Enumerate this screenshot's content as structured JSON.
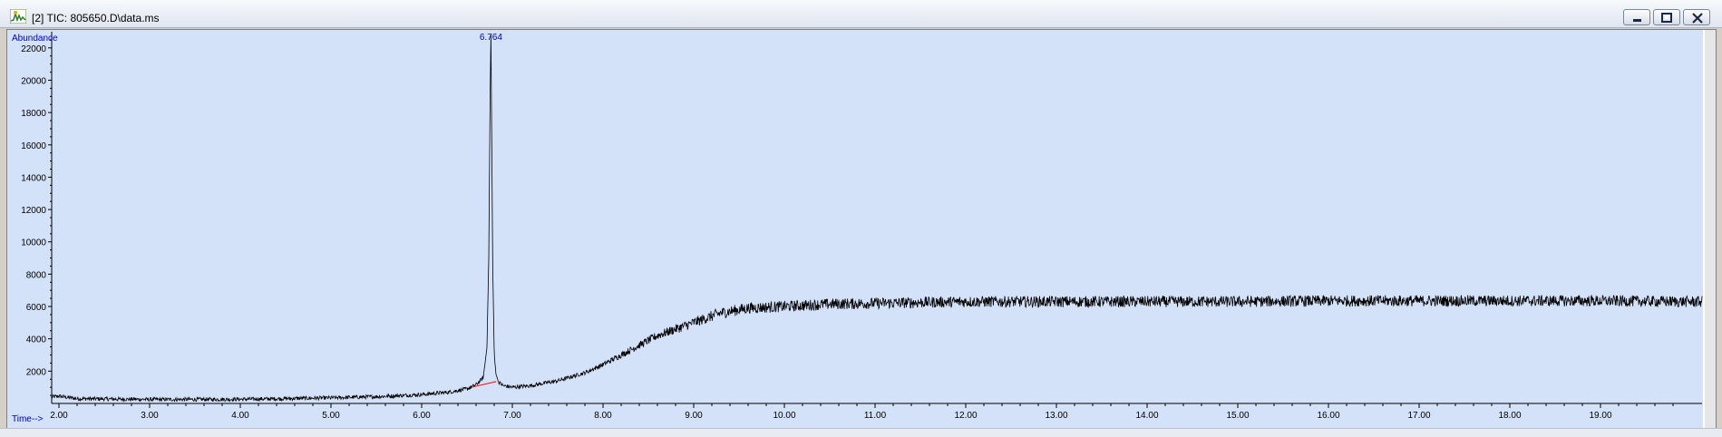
{
  "window": {
    "title": "[2] TIC: 805650.D\\data.ms",
    "icon": "chromatogram-icon",
    "buttons": [
      "minimize-icon",
      "restore-icon",
      "close-icon"
    ]
  },
  "chart_data": {
    "type": "line",
    "title": "",
    "ylabel": "Abundance",
    "xlabel": "Time-->",
    "xlim": [
      1.92,
      20.12
    ],
    "ylim": [
      0,
      23000
    ],
    "x_ticks": [
      "2.00",
      "3.00",
      "4.00",
      "5.00",
      "6.00",
      "7.00",
      "8.00",
      "9.00",
      "10.00",
      "11.00",
      "12.00",
      "13.00",
      "14.00",
      "15.00",
      "16.00",
      "17.00",
      "18.00",
      "19.00"
    ],
    "y_ticks": [
      "2000",
      "4000",
      "6000",
      "8000",
      "10000",
      "12000",
      "14000",
      "16000",
      "18000",
      "20000",
      "22000"
    ],
    "peak_label": "6.764",
    "series": [
      {
        "color": "#000000",
        "x": [
          1.92,
          2.0,
          2.2,
          2.5,
          3.0,
          3.5,
          4.0,
          4.5,
          5.0,
          5.5,
          6.0,
          6.3,
          6.5,
          6.6,
          6.68,
          6.72,
          6.74,
          6.755,
          6.764,
          6.775,
          6.785,
          6.8,
          6.82,
          6.85,
          6.9,
          7.0,
          7.2,
          7.5,
          7.8,
          8.0,
          8.3,
          8.6,
          9.0,
          9.3,
          9.6,
          10.0,
          10.5,
          11.0,
          12.0,
          13.0,
          14.0,
          15.0,
          16.0,
          17.0,
          18.0,
          19.0,
          19.95,
          20.12
        ],
        "y": [
          400,
          450,
          300,
          280,
          250,
          250,
          260,
          300,
          350,
          420,
          550,
          700,
          900,
          1150,
          1600,
          3500,
          9000,
          19000,
          22800,
          15000,
          8000,
          3000,
          1800,
          1300,
          1100,
          1000,
          1100,
          1400,
          1900,
          2400,
          3300,
          4200,
          5000,
          5600,
          5900,
          6000,
          6150,
          6200,
          6300,
          6300,
          6300,
          6300,
          6350,
          6350,
          6350,
          6350,
          6300,
          6300
        ],
        "noise_amplitude": 350
      },
      {
        "name": "",
        "color": "#ff0000",
        "x": [
          6.55,
          6.82
        ],
        "y": [
          1000,
          1350
        ]
      }
    ],
    "background": "#d3e1f9",
    "axis_color": "#0000c0",
    "grid": false
  }
}
